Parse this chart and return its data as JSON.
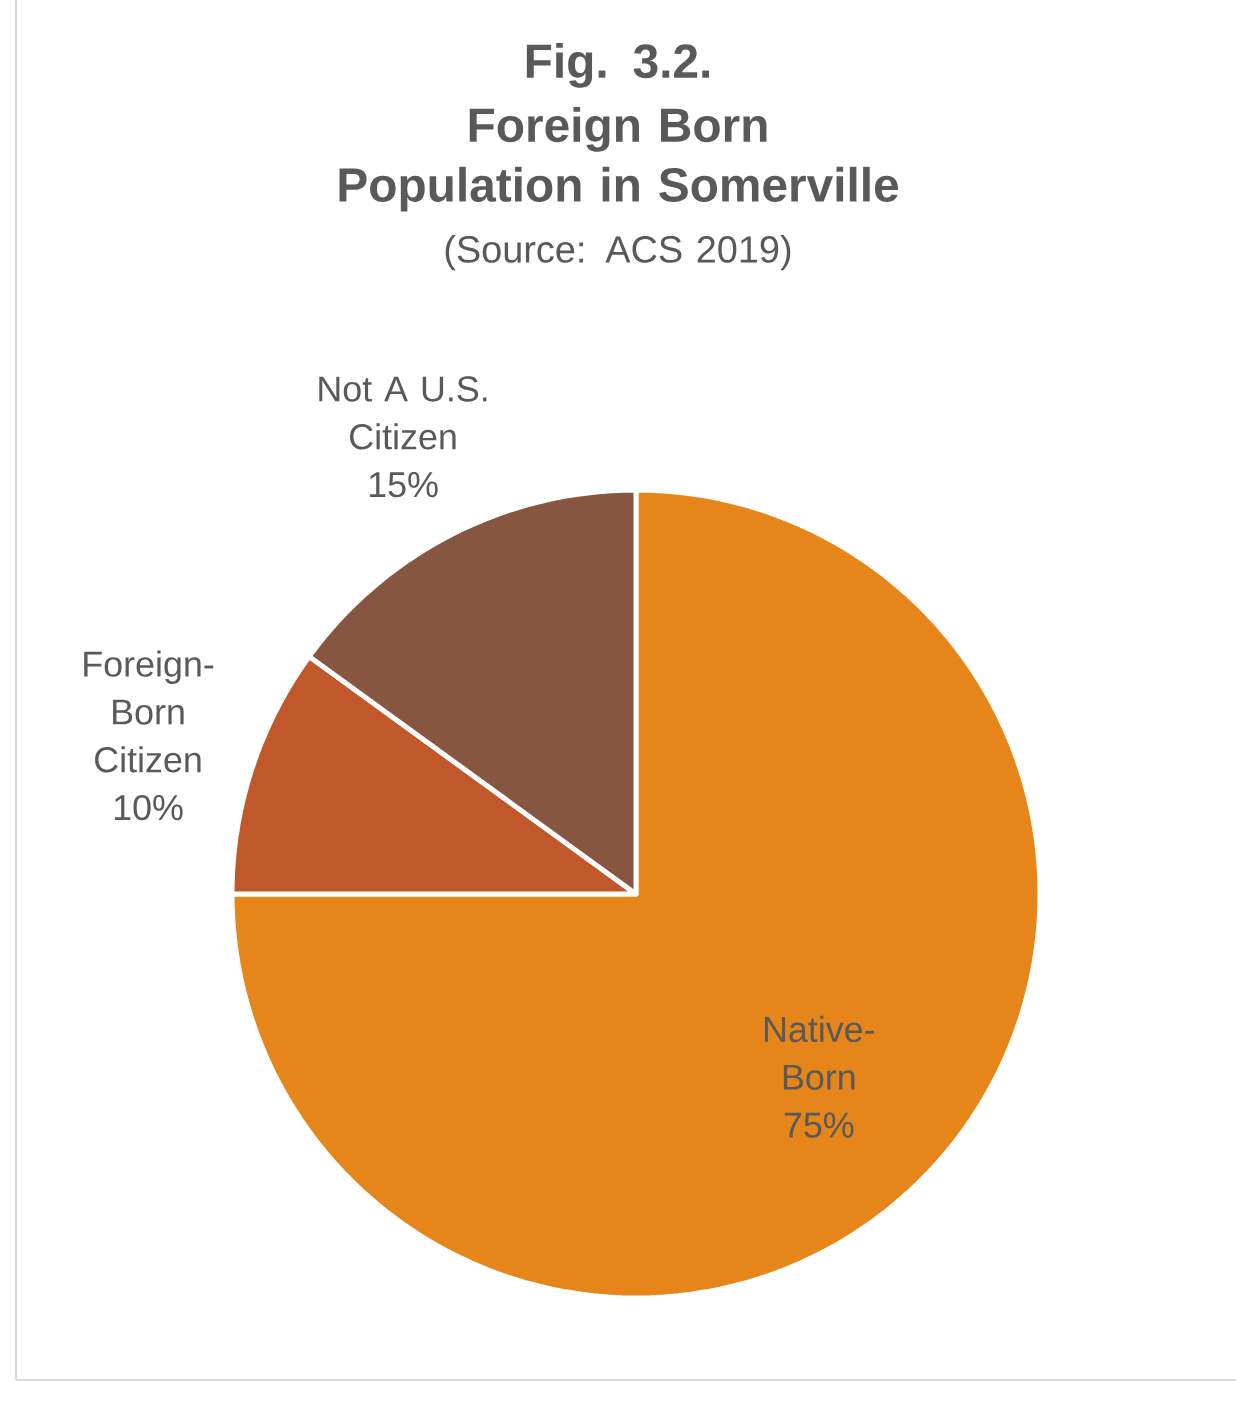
{
  "chart_data": {
    "type": "pie",
    "title": "Fig. 3.2.",
    "subtitle": "Foreign Born Population in Somerville",
    "annotations": [
      "(Source: ACS 2019)"
    ],
    "categories": [
      "Native-Born",
      "Foreign-Born Citizen",
      "Not A U.S. Citizen"
    ],
    "values": [
      75,
      10,
      15
    ],
    "value_labels": [
      "75%",
      "10%",
      "15%"
    ],
    "colors": [
      "#e6861a",
      "#c0582b",
      "#875640"
    ]
  }
}
